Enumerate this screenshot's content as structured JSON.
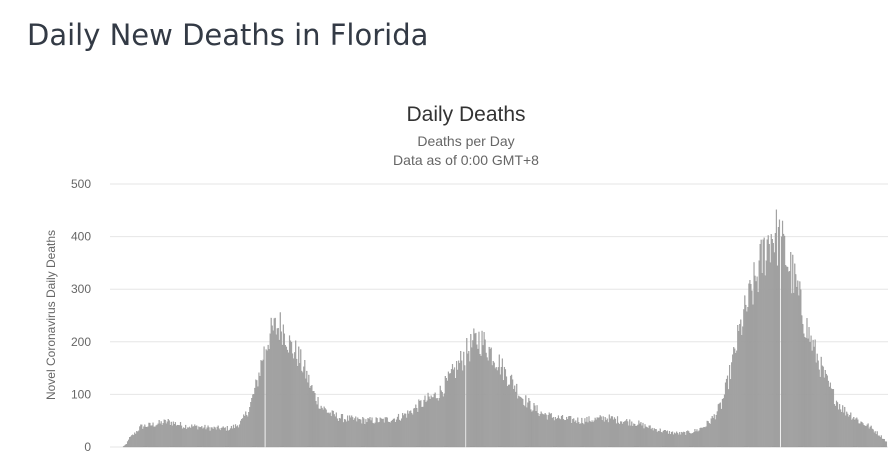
{
  "page": {
    "title": "Daily New Deaths in Florida"
  },
  "chart_data": {
    "type": "bar",
    "title": "Daily Deaths",
    "subtitle": "Deaths per Day",
    "note": "Data as of 0:00 GMT+8",
    "ylabel": "Novel Coronavirus Daily Deaths",
    "xlabel": "",
    "ylim": [
      0,
      500
    ],
    "yticks": [
      0,
      100,
      200,
      300,
      400,
      500
    ],
    "grid": true,
    "bar_color": "#a6a6a6",
    "profile": [
      [
        0,
        0
      ],
      [
        4,
        5
      ],
      [
        6,
        15
      ],
      [
        12,
        25
      ],
      [
        18,
        38
      ],
      [
        30,
        42
      ],
      [
        45,
        48
      ],
      [
        60,
        40
      ],
      [
        75,
        38
      ],
      [
        90,
        35
      ],
      [
        105,
        35
      ],
      [
        112,
        40
      ],
      [
        118,
        50
      ],
      [
        125,
        75
      ],
      [
        132,
        120
      ],
      [
        138,
        175
      ],
      [
        144,
        210
      ],
      [
        150,
        225
      ],
      [
        156,
        230
      ],
      [
        160,
        220
      ],
      [
        165,
        190
      ],
      [
        172,
        175
      ],
      [
        180,
        140
      ],
      [
        188,
        100
      ],
      [
        196,
        75
      ],
      [
        205,
        62
      ],
      [
        215,
        55
      ],
      [
        225,
        52
      ],
      [
        240,
        50
      ],
      [
        255,
        50
      ],
      [
        270,
        55
      ],
      [
        282,
        65
      ],
      [
        292,
        80
      ],
      [
        300,
        90
      ],
      [
        306,
        95
      ],
      [
        312,
        105
      ],
      [
        320,
        125
      ],
      [
        328,
        150
      ],
      [
        336,
        175
      ],
      [
        344,
        195
      ],
      [
        350,
        205
      ],
      [
        356,
        195
      ],
      [
        362,
        180
      ],
      [
        368,
        165
      ],
      [
        376,
        140
      ],
      [
        384,
        120
      ],
      [
        392,
        95
      ],
      [
        400,
        80
      ],
      [
        410,
        65
      ],
      [
        420,
        58
      ],
      [
        435,
        52
      ],
      [
        450,
        50
      ],
      [
        465,
        52
      ],
      [
        475,
        55
      ],
      [
        490,
        50
      ],
      [
        505,
        45
      ],
      [
        520,
        35
      ],
      [
        535,
        28
      ],
      [
        548,
        25
      ],
      [
        558,
        28
      ],
      [
        565,
        32
      ],
      [
        572,
        40
      ],
      [
        580,
        55
      ],
      [
        588,
        80
      ],
      [
        594,
        120
      ],
      [
        600,
        170
      ],
      [
        606,
        220
      ],
      [
        612,
        260
      ],
      [
        618,
        295
      ],
      [
        624,
        330
      ],
      [
        630,
        370
      ],
      [
        636,
        400
      ],
      [
        640,
        405
      ],
      [
        644,
        395
      ],
      [
        648,
        380
      ],
      [
        652,
        360
      ],
      [
        657,
        330
      ],
      [
        662,
        300
      ],
      [
        667,
        260
      ],
      [
        672,
        225
      ],
      [
        678,
        190
      ],
      [
        684,
        160
      ],
      [
        690,
        130
      ],
      [
        696,
        105
      ],
      [
        702,
        85
      ],
      [
        708,
        70
      ],
      [
        716,
        60
      ],
      [
        724,
        48
      ],
      [
        732,
        40
      ],
      [
        740,
        28
      ],
      [
        746,
        18
      ],
      [
        750,
        10
      ]
    ],
    "gaps": [
      140,
      337,
      646
    ]
  }
}
